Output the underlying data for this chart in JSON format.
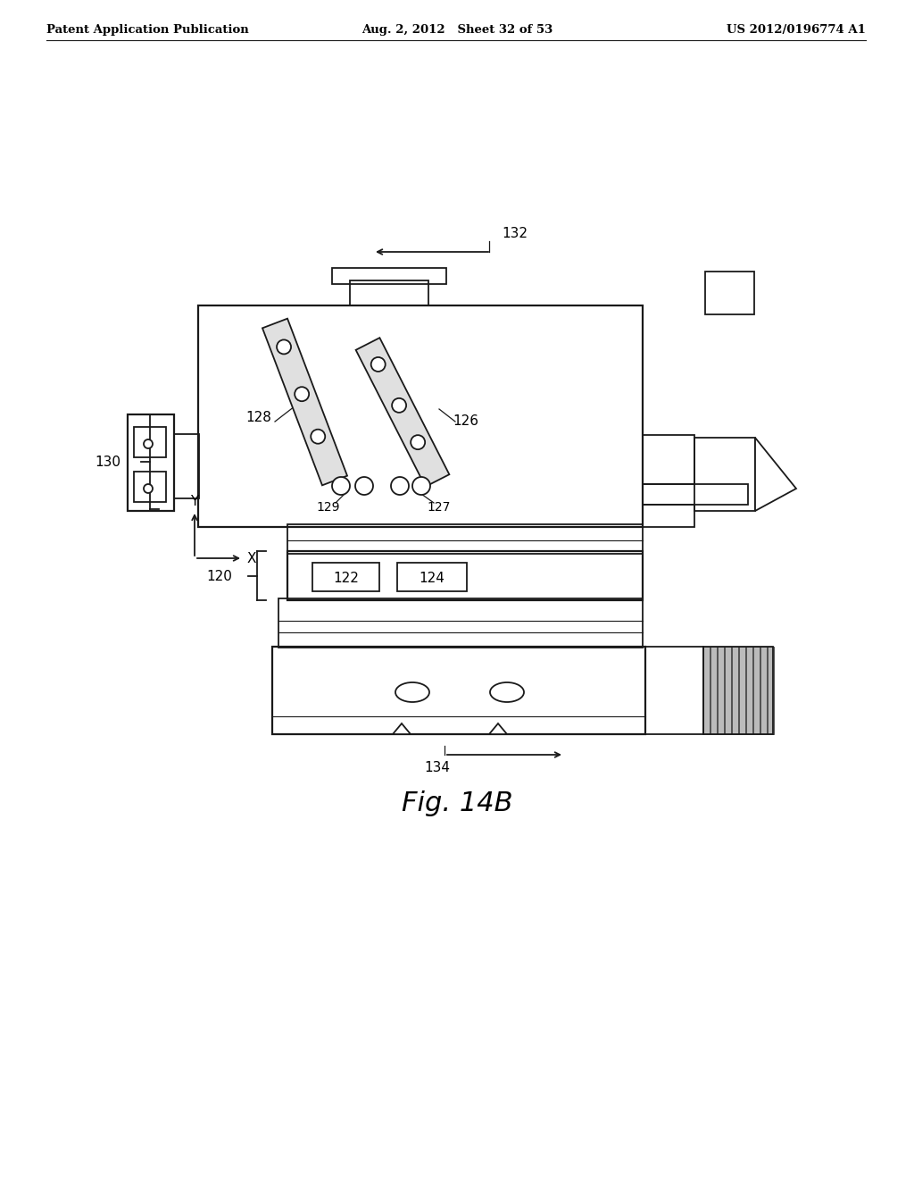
{
  "bg_color": "#ffffff",
  "lc": "#1a1a1a",
  "header_left": "Patent Application Publication",
  "header_center": "Aug. 2, 2012   Sheet 32 of 53",
  "header_right": "US 2012/0196774 A1",
  "fig_caption": "Fig. 14B",
  "label_130": "130",
  "label_128": "128",
  "label_126": "126",
  "label_129": "129",
  "label_127": "127",
  "label_120": "120",
  "label_122": "122",
  "label_124": "124",
  "label_132": "132",
  "label_134": "134"
}
